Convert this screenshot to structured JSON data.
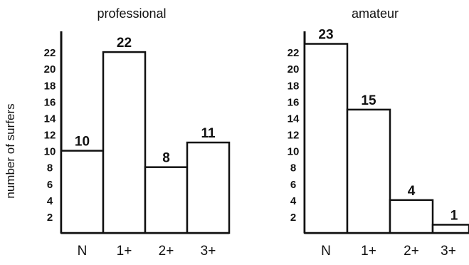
{
  "ylabel": "number of surfers",
  "chart_data": [
    {
      "type": "bar",
      "title": "professional",
      "xlabel": "",
      "ylabel": "number of surfers",
      "ylim": [
        0,
        24
      ],
      "yticks": [
        2,
        4,
        6,
        8,
        10,
        12,
        14,
        16,
        18,
        20,
        22
      ],
      "categories": [
        "N",
        "1+",
        "2+",
        "3+"
      ],
      "values": [
        10,
        22,
        8,
        11
      ],
      "data_labels": [
        "10",
        "22",
        "8",
        "11"
      ],
      "grid": false,
      "legend": "none"
    },
    {
      "type": "bar",
      "title": "amateur",
      "xlabel": "",
      "ylabel": "",
      "ylim": [
        0,
        24
      ],
      "yticks": [
        2,
        4,
        6,
        8,
        10,
        12,
        14,
        16,
        18,
        20,
        22
      ],
      "categories": [
        "N",
        "1+",
        "2+",
        "3+"
      ],
      "values": [
        23,
        15,
        4,
        1
      ],
      "data_labels": [
        "23",
        "15",
        "4",
        "1"
      ],
      "grid": false,
      "legend": "none"
    }
  ]
}
